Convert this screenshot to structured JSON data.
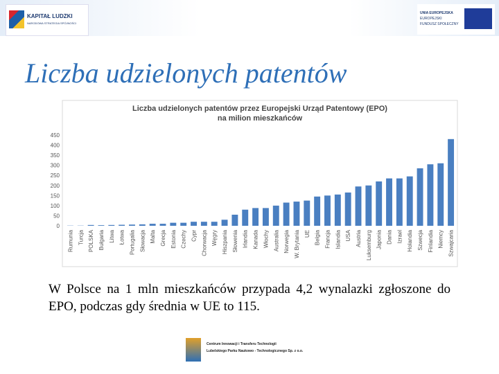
{
  "header": {
    "left_logo": [
      "KAPITAŁ LUDZKI",
      "NARODOWA STRATEGIA SPÓJNOŚCI"
    ],
    "right_logo": [
      "UNIA EUROPEJSKA",
      "EUROPEJSKI",
      "FUNDUSZ SPOŁECZNY"
    ]
  },
  "slide_title": "Liczba udzielonych patentów",
  "chart_data": {
    "type": "bar",
    "title": "Liczba udzielonych patentów przez Europejski Urząd Patentowy (EPO)",
    "subtitle": "na milion mieszkańców",
    "categories": [
      "Rumunia",
      "Turcja",
      "POLSKA",
      "Bułgaria",
      "Litwa",
      "Łotwa",
      "Portugalia",
      "Słowacja",
      "Malta",
      "Grecja",
      "Estonia",
      "Czechy",
      "Cypr",
      "Chorwacja",
      "Węgry",
      "Hiszpania",
      "Słowenia",
      "Irlandia",
      "Kanada",
      "Włochy",
      "Australia",
      "Norwegia",
      "W. Brytania",
      "UE",
      "Belgia",
      "Francja",
      "Islandia",
      "USA",
      "Austria",
      "Luksemburg",
      "Japonia",
      "Dania",
      "Izrael",
      "Holandia",
      "Szwecja",
      "Finlandia",
      "Niemcy",
      "Szwajcaria"
    ],
    "values": [
      1,
      1,
      4,
      3,
      4,
      5,
      6,
      7,
      10,
      10,
      15,
      15,
      20,
      20,
      20,
      30,
      55,
      80,
      88,
      88,
      100,
      115,
      120,
      125,
      145,
      150,
      155,
      165,
      195,
      200,
      220,
      235,
      235,
      245,
      285,
      305,
      310,
      430
    ],
    "color": "#4a7fc1",
    "ylim": [
      0,
      450
    ],
    "yticks": [
      0,
      50,
      100,
      150,
      200,
      250,
      300,
      350,
      400,
      450
    ],
    "grid": false
  },
  "caption": "W Polsce na 1 mln mieszkańców przypada 4,2 wynalazki zgłoszone do EPO, podczas gdy średnia w UE to 115.",
  "footer_logo": [
    "Centrum Innowacji i Transferu Technologii",
    "Lubelskiego Parku Naukowo - Technologicznego Sp. z o.o."
  ]
}
